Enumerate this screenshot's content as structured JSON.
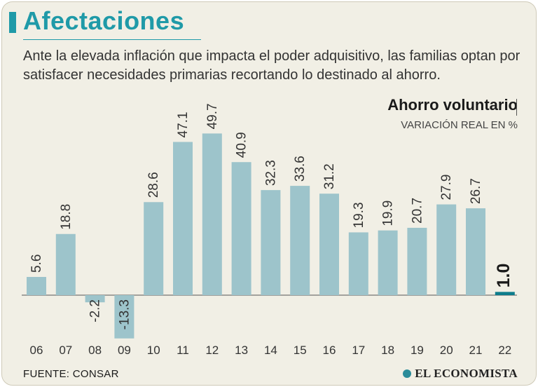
{
  "header": {
    "title": "Afectaciones",
    "subtitle": "Ante la elevada inflación que impacta el poder adquisitivo, las familias optan por satisfacer necesidades primarias recortando lo destinado al ahorro."
  },
  "colors": {
    "accent": "#1f9aa8",
    "bar": "#9dc4cb",
    "highlight_bar": "#0f7d8c",
    "background": "#f1efe5"
  },
  "chart_data": {
    "type": "bar",
    "title": "Ahorro voluntario",
    "subtitle": "VARIACIÓN REAL EN %",
    "categories": [
      "06",
      "07",
      "08",
      "09",
      "10",
      "11",
      "12",
      "13",
      "14",
      "15",
      "16",
      "17",
      "18",
      "19",
      "20",
      "21",
      "22"
    ],
    "values": [
      5.6,
      18.8,
      -2.2,
      -13.3,
      28.6,
      47.1,
      49.7,
      40.9,
      32.3,
      33.6,
      31.2,
      19.3,
      19.9,
      20.7,
      27.9,
      26.7,
      1.0
    ],
    "labels": [
      "5.6",
      "18.8",
      "-2.2",
      "-13.3",
      "28.6",
      "47.1",
      "49.7",
      "40.9",
      "32.3",
      "33.6",
      "31.2",
      "19.3",
      "19.9",
      "20.7",
      "27.9",
      "26.7",
      "1.0"
    ],
    "highlight": "22",
    "xlabel": "",
    "ylabel": "",
    "ylim": [
      -14,
      52
    ],
    "grid": false,
    "legend": "none"
  },
  "footer": {
    "source": "FUENTE: CONSAR",
    "brand": "EL ECONOMISTA",
    "brand_icon": "logo-circle-icon"
  }
}
